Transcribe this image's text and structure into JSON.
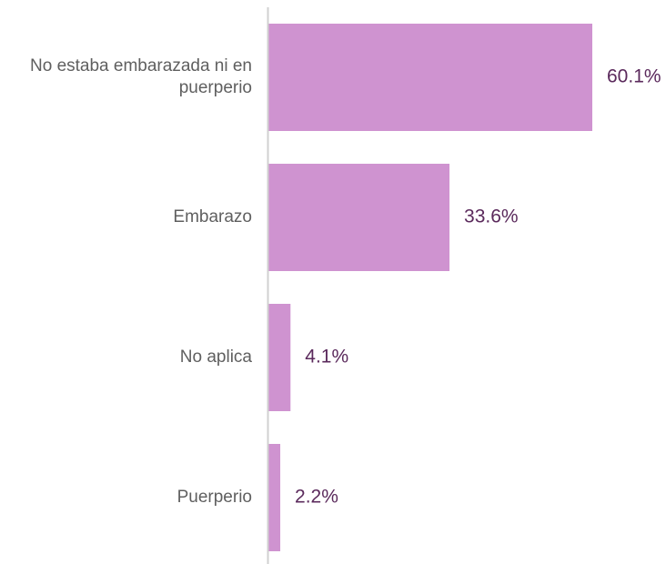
{
  "chart_data": {
    "type": "bar",
    "orientation": "horizontal",
    "categories": [
      [
        "No estaba embarazada ni en",
        "puerperio"
      ],
      [
        "Embarazo"
      ],
      [
        "No aplica"
      ],
      [
        "Puerperio"
      ]
    ],
    "values": [
      60.1,
      33.6,
      4.1,
      2.2
    ],
    "value_labels": [
      "60.1%",
      "33.6%",
      "4.1%",
      "2.2%"
    ],
    "xlim": [
      0,
      60.1
    ],
    "grid": false,
    "colors": {
      "bar": "#cf93d0",
      "value_text": "#5b2a5c",
      "category_text": "#5f5f5f",
      "axis": "#d0d0d0"
    }
  }
}
